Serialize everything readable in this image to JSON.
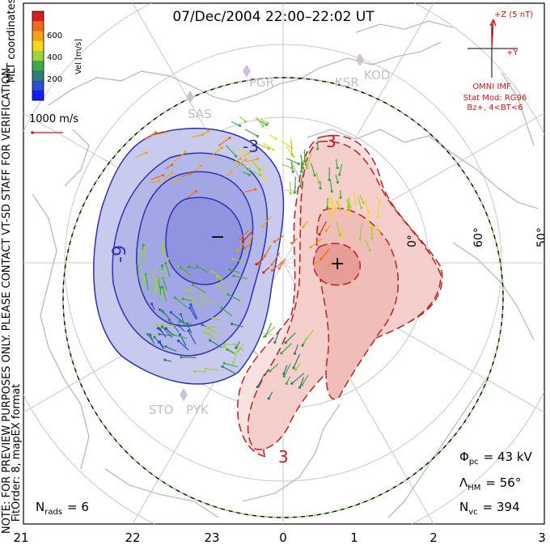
{
  "title": "07/Dec/2004 22:00–22:02 UT",
  "coordinates_label": "MLT coordinates",
  "colorbar": {
    "label": "Vel [m/s]",
    "ticks": [
      "600",
      "400",
      "200"
    ],
    "colors": [
      "#d42020",
      "#ee6a1e",
      "#f2a21a",
      "#f5d820",
      "#9cd23a",
      "#3fa848",
      "#2f7c78",
      "#2a4fc8",
      "#1a1aff"
    ]
  },
  "velocity_scale_label": "1000 m/s",
  "preview_note": "NOTE: FOR PREVIEW PURPOSES ONLY. PLEASE CONTACT VT-SD STAFF FOR VERIFICATION.",
  "fit_note": "FitOrder: 8, mapEX format",
  "imf": {
    "z_label": "+Z (5 nT)",
    "y_label": "+Y",
    "source": "OMNI IMF",
    "model_line1": "Stat Mod: RG96",
    "model_line2": "Bz+, 4<BT<6"
  },
  "stations": [
    "PGR",
    "KSR",
    "KOD",
    "SAS",
    "STO",
    "PYK"
  ],
  "contour_labels": {
    "negative": "-9",
    "negative_top": "-3",
    "positive_top": "3",
    "positive_bottom": "3",
    "minus_marker": "−",
    "plus_marker": "+"
  },
  "lat_labels": [
    "0°",
    "60°",
    "50°"
  ],
  "mlt_labels": [
    "21",
    "22",
    "23",
    "0",
    "1",
    "2",
    "3"
  ],
  "stats": {
    "phi_symbol": "Φ",
    "phi_sub": "pc",
    "phi_value": "= 43 kV",
    "lambda_symbol": "Λ",
    "lambda_sub": "HM",
    "lambda_value": "= 56°",
    "nvc_symbol": "N",
    "nvc_sub": "vc",
    "nvc_value": "= 394",
    "nrads_symbol": "N",
    "nrads_sub": "rads",
    "nrads_value": "= 6"
  },
  "colors": {
    "negative_cell": "#3030b0",
    "positive_cell": "#c02020",
    "negative_fill": "#c8cbee",
    "positive_fill": "#f4cfcc",
    "boundary_green": "#66cc44",
    "imf_red": "#dd1111",
    "coastline": "#bdbdbd"
  }
}
